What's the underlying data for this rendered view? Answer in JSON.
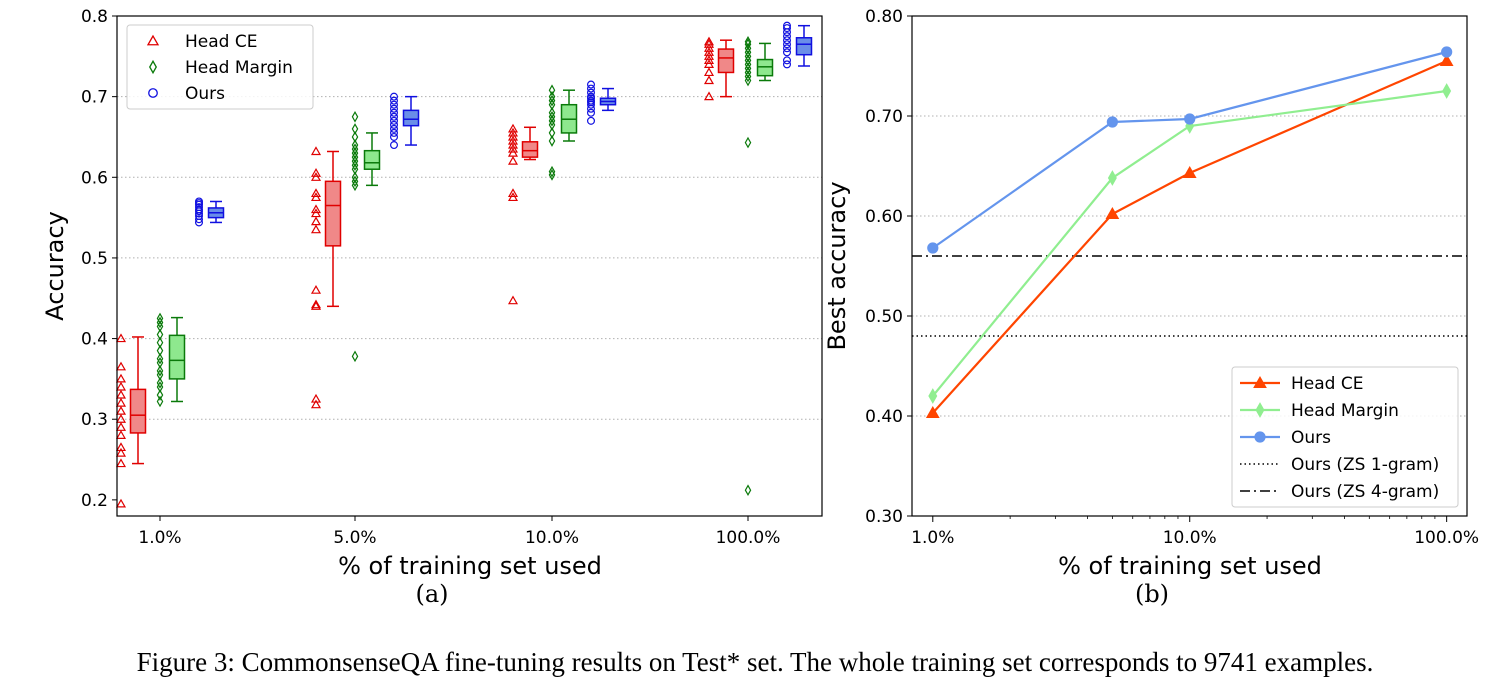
{
  "caption": "Figure 3: CommonsenseQA fine-tuning results on Test* set. The whole training set corresponds to 9741 examples.",
  "colors": {
    "a_head_ce": "#e00000",
    "a_head_ce_fill": "#f08888",
    "a_head_margin": "#0a7a0a",
    "a_head_margin_fill": "#8ee88e",
    "a_ours": "#1010e0",
    "a_ours_fill": "#6a8ee8",
    "b_head_ce": "#ff4500",
    "b_head_margin": "#90ee90",
    "b_ours": "#6495ed"
  },
  "chart_data": [
    {
      "type": "box",
      "sublabel": "(a)",
      "xlabel": "% of training set used",
      "ylabel": "Accuracy",
      "categories": [
        "1.0%",
        "5.0%",
        "10.0%",
        "100.0%"
      ],
      "ylim": [
        0.18,
        0.8
      ],
      "yticks": [
        "0.2",
        "0.3",
        "0.4",
        "0.5",
        "0.6",
        "0.7",
        "0.8"
      ],
      "grid": "horizontal dotted",
      "legend_position": "top-left",
      "series": [
        {
          "name": "Head CE",
          "marker": "triangle",
          "points": [
            [
              0.195,
              0.245,
              0.258,
              0.265,
              0.28,
              0.29,
              0.3,
              0.31,
              0.32,
              0.33,
              0.34,
              0.35,
              0.365,
              0.4
            ],
            [
              0.318,
              0.325,
              0.44,
              0.442,
              0.46,
              0.535,
              0.545,
              0.555,
              0.56,
              0.575,
              0.58,
              0.6,
              0.605,
              0.632
            ],
            [
              0.447,
              0.575,
              0.58,
              0.62,
              0.63,
              0.635,
              0.64,
              0.645,
              0.65,
              0.655,
              0.66
            ],
            [
              0.7,
              0.72,
              0.73,
              0.74,
              0.745,
              0.75,
              0.755,
              0.76,
              0.765,
              0.768
            ]
          ],
          "boxes": [
            {
              "whislo": 0.245,
              "q1": 0.283,
              "med": 0.305,
              "q3": 0.337,
              "whishi": 0.402
            },
            {
              "whislo": 0.44,
              "q1": 0.515,
              "med": 0.565,
              "q3": 0.595,
              "whishi": 0.632
            },
            {
              "whislo": 0.622,
              "q1": 0.625,
              "med": 0.633,
              "q3": 0.644,
              "whishi": 0.662
            },
            {
              "whislo": 0.7,
              "q1": 0.73,
              "med": 0.748,
              "q3": 0.759,
              "whishi": 0.77
            }
          ]
        },
        {
          "name": "Head Margin",
          "marker": "diamond",
          "points": [
            [
              0.322,
              0.33,
              0.34,
              0.345,
              0.355,
              0.36,
              0.37,
              0.375,
              0.385,
              0.395,
              0.405,
              0.415,
              0.42,
              0.425
            ],
            [
              0.378,
              0.59,
              0.595,
              0.6,
              0.61,
              0.615,
              0.62,
              0.625,
              0.63,
              0.635,
              0.64,
              0.65,
              0.66,
              0.675
            ],
            [
              0.603,
              0.607,
              0.645,
              0.655,
              0.665,
              0.67,
              0.675,
              0.68,
              0.69,
              0.695,
              0.7,
              0.708
            ],
            [
              0.212,
              0.643,
              0.72,
              0.725,
              0.73,
              0.735,
              0.74,
              0.745,
              0.75,
              0.755,
              0.76,
              0.765,
              0.768
            ]
          ],
          "boxes": [
            {
              "whislo": 0.322,
              "q1": 0.35,
              "med": 0.373,
              "q3": 0.404,
              "whishi": 0.426
            },
            {
              "whislo": 0.59,
              "q1": 0.61,
              "med": 0.618,
              "q3": 0.633,
              "whishi": 0.655
            },
            {
              "whislo": 0.645,
              "q1": 0.655,
              "med": 0.672,
              "q3": 0.69,
              "whishi": 0.708
            },
            {
              "whislo": 0.72,
              "q1": 0.726,
              "med": 0.737,
              "q3": 0.746,
              "whishi": 0.766
            }
          ]
        },
        {
          "name": "Ours",
          "marker": "circle",
          "points": [
            [
              0.544,
              0.548,
              0.552,
              0.555,
              0.558,
              0.56,
              0.563,
              0.566,
              0.568,
              0.57
            ],
            [
              0.64,
              0.65,
              0.655,
              0.66,
              0.665,
              0.67,
              0.675,
              0.68,
              0.685,
              0.69,
              0.695,
              0.7
            ],
            [
              0.67,
              0.68,
              0.685,
              0.69,
              0.693,
              0.695,
              0.698,
              0.7,
              0.705,
              0.71,
              0.715
            ],
            [
              0.74,
              0.745,
              0.755,
              0.76,
              0.765,
              0.77,
              0.775,
              0.78,
              0.785,
              0.788
            ]
          ],
          "boxes": [
            {
              "whislo": 0.544,
              "q1": 0.55,
              "med": 0.556,
              "q3": 0.562,
              "whishi": 0.57
            },
            {
              "whislo": 0.64,
              "q1": 0.664,
              "med": 0.672,
              "q3": 0.683,
              "whishi": 0.7
            },
            {
              "whislo": 0.683,
              "q1": 0.69,
              "med": 0.694,
              "q3": 0.698,
              "whishi": 0.71
            },
            {
              "whislo": 0.738,
              "q1": 0.752,
              "med": 0.765,
              "q3": 0.773,
              "whishi": 0.788
            }
          ]
        }
      ]
    },
    {
      "type": "line",
      "sublabel": "(b)",
      "xlabel": "% of training set used",
      "ylabel": "Best accuracy",
      "xscale": "log",
      "x": [
        1,
        5,
        10,
        100
      ],
      "xticks": [
        "1.0%",
        "10.0%",
        "100.0%"
      ],
      "xlim": [
        0.83,
        120
      ],
      "ylim": [
        0.3,
        0.8
      ],
      "yticks": [
        "0.30",
        "0.40",
        "0.50",
        "0.60",
        "0.70",
        "0.80"
      ],
      "grid": "horizontal dotted",
      "legend_position": "bottom-right",
      "series": [
        {
          "name": "Head CE",
          "marker": "triangle",
          "values": [
            0.403,
            0.602,
            0.643,
            0.755
          ]
        },
        {
          "name": "Head Margin",
          "marker": "diamond",
          "values": [
            0.42,
            0.638,
            0.69,
            0.725
          ]
        },
        {
          "name": "Ours",
          "marker": "circle",
          "values": [
            0.568,
            0.694,
            0.697,
            0.764
          ]
        }
      ],
      "reference_lines": [
        {
          "name": "Ours (ZS 1-gram)",
          "style": "dotted",
          "value": 0.48
        },
        {
          "name": "Ours (ZS 4-gram)",
          "style": "dash-dot",
          "value": 0.56
        }
      ]
    }
  ]
}
